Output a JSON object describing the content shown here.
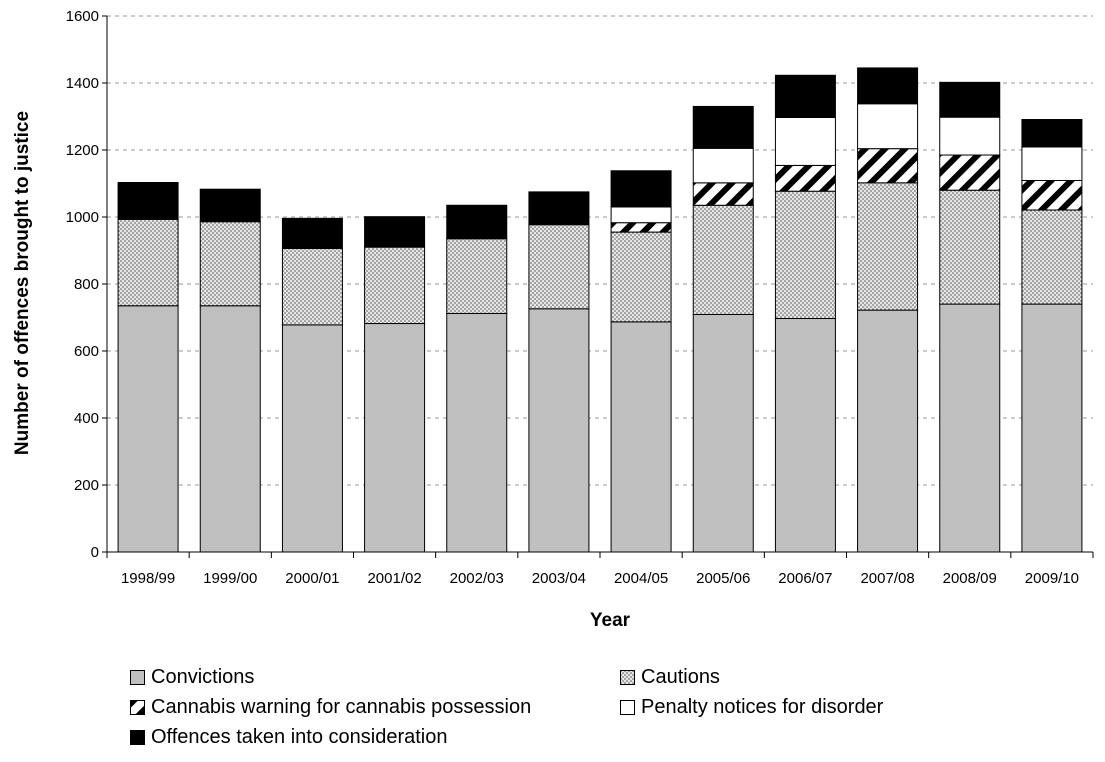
{
  "chart_data": {
    "type": "bar",
    "stacked": true,
    "categories": [
      "1998/99",
      "1999/00",
      "2000/01",
      "2001/02",
      "2002/03",
      "2003/04",
      "2004/05",
      "2005/06",
      "2006/07",
      "2007/08",
      "2008/09",
      "2009/10"
    ],
    "series": [
      {
        "name": "Convictions",
        "fill": "solid-grey",
        "color": "#c0c0c0",
        "values": [
          735,
          735,
          678,
          682,
          712,
          726,
          687,
          709,
          697,
          722,
          740,
          740
        ]
      },
      {
        "name": "Cautions",
        "fill": "dotted",
        "color": "#c0c0c0",
        "values": [
          258,
          251,
          228,
          228,
          223,
          251,
          268,
          326,
          380,
          380,
          340,
          281
        ]
      },
      {
        "name": "Cannabis warning for cannabis possession",
        "fill": "hatched",
        "color": "#000000",
        "values": [
          0,
          0,
          0,
          0,
          0,
          0,
          28,
          67,
          77,
          102,
          105,
          88
        ]
      },
      {
        "name": "Penalty notices for disorder",
        "fill": "white",
        "color": "#ffffff",
        "values": [
          0,
          0,
          0,
          0,
          0,
          0,
          47,
          103,
          143,
          134,
          113,
          100
        ]
      },
      {
        "name": "Offences taken into consideration",
        "fill": "black",
        "color": "#000000",
        "values": [
          110,
          97,
          90,
          91,
          100,
          98,
          108,
          125,
          126,
          107,
          104,
          82
        ]
      }
    ],
    "xlabel": "Year",
    "ylabel": "Number of offences brought to justice",
    "ylim": [
      0,
      1600
    ],
    "yticks": [
      "0",
      "200",
      "400",
      "600",
      "800",
      "1000",
      "1200",
      "1400",
      "1600"
    ],
    "grid": "horizontal dashed",
    "legend_position": "bottom"
  }
}
